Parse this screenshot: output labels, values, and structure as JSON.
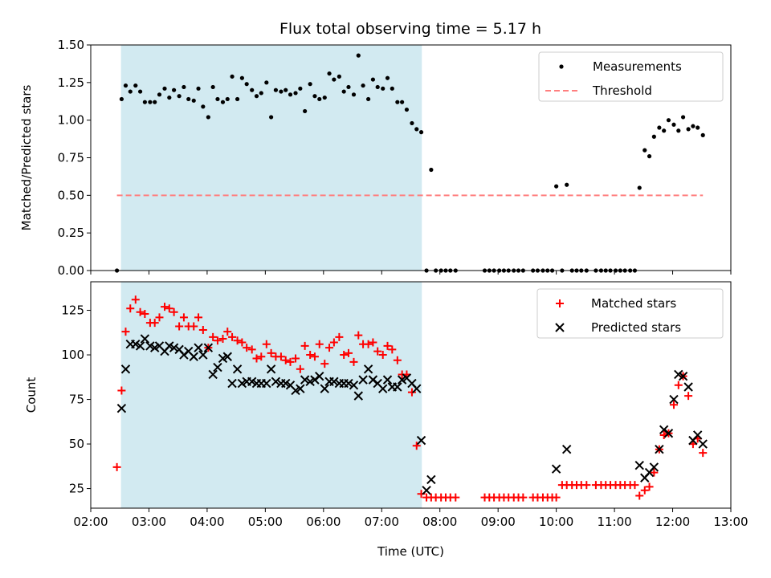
{
  "chart_data": [
    {
      "type": "scatter",
      "title": "Flux total observing time = 5.17 h",
      "ylabel": "Matched/Predicted stars",
      "xlabel": "",
      "xlim": [
        2.0,
        13.0
      ],
      "ylim": [
        0.0,
        1.5
      ],
      "yticks": [
        "0.00",
        "0.25",
        "0.50",
        "0.75",
        "1.00",
        "1.25",
        "1.50"
      ],
      "grid": false,
      "legend_position": "top-right",
      "highlight_span": [
        2.52,
        7.69
      ],
      "series": [
        {
          "name": "Measurements",
          "marker": "dot",
          "color": "#000000",
          "x": [
            2.45,
            2.53,
            2.6,
            2.68,
            2.77,
            2.85,
            2.93,
            3.02,
            3.1,
            3.18,
            3.27,
            3.35,
            3.43,
            3.52,
            3.6,
            3.68,
            3.77,
            3.85,
            3.93,
            4.02,
            4.1,
            4.18,
            4.27,
            4.35,
            4.43,
            4.52,
            4.6,
            4.68,
            4.77,
            4.85,
            4.93,
            5.02,
            5.1,
            5.18,
            5.27,
            5.35,
            5.43,
            5.52,
            5.6,
            5.68,
            5.77,
            5.85,
            5.93,
            6.02,
            6.1,
            6.18,
            6.27,
            6.35,
            6.43,
            6.52,
            6.6,
            6.68,
            6.77,
            6.85,
            6.93,
            7.02,
            7.1,
            7.18,
            7.27,
            7.35,
            7.43,
            7.52,
            7.6,
            7.68,
            7.77,
            7.85,
            7.93,
            8.02,
            8.1,
            8.18,
            8.27,
            8.77,
            8.85,
            8.93,
            9.02,
            9.1,
            9.18,
            9.27,
            9.35,
            9.43,
            9.6,
            9.68,
            9.77,
            9.85,
            9.93,
            10.0,
            10.1,
            10.18,
            10.27,
            10.35,
            10.43,
            10.52,
            10.68,
            10.77,
            10.85,
            10.93,
            11.02,
            11.1,
            11.18,
            11.27,
            11.35,
            11.43,
            11.52,
            11.6,
            11.68,
            11.77,
            11.85,
            11.93,
            12.02,
            12.1,
            12.18,
            12.27,
            12.35,
            12.43,
            12.52
          ],
          "y": [
            0.0,
            1.14,
            1.23,
            1.19,
            1.23,
            1.19,
            1.12,
            1.12,
            1.12,
            1.17,
            1.21,
            1.15,
            1.2,
            1.16,
            1.22,
            1.14,
            1.13,
            1.21,
            1.09,
            1.02,
            1.22,
            1.14,
            1.12,
            1.14,
            1.29,
            1.14,
            1.28,
            1.24,
            1.2,
            1.16,
            1.18,
            1.25,
            1.02,
            1.2,
            1.19,
            1.2,
            1.17,
            1.18,
            1.21,
            1.06,
            1.24,
            1.16,
            1.14,
            1.15,
            1.31,
            1.27,
            1.29,
            1.19,
            1.22,
            1.17,
            1.43,
            1.23,
            1.14,
            1.27,
            1.22,
            1.21,
            1.28,
            1.21,
            1.12,
            1.12,
            1.07,
            0.98,
            0.94,
            0.92,
            0.0,
            0.67,
            0.0,
            0.0,
            0.0,
            0.0,
            0.0,
            0.0,
            0.0,
            0.0,
            0.0,
            0.0,
            0.0,
            0.0,
            0.0,
            0.0,
            0.0,
            0.0,
            0.0,
            0.0,
            0.0,
            0.56,
            0.0,
            0.57,
            0.0,
            0.0,
            0.0,
            0.0,
            0.0,
            0.0,
            0.0,
            0.0,
            0.0,
            0.0,
            0.0,
            0.0,
            0.0,
            0.55,
            0.8,
            0.76,
            0.89,
            0.95,
            0.93,
            1.0,
            0.97,
            0.93,
            1.02,
            0.94,
            0.96,
            0.95,
            0.9
          ]
        },
        {
          "name": "Threshold",
          "marker": "dashed-line",
          "color": "#ff7f7f",
          "x": [
            2.45,
            12.52
          ],
          "y": [
            0.5,
            0.5
          ]
        }
      ]
    },
    {
      "type": "scatter",
      "title": "",
      "ylabel": "Count",
      "xlabel": "Time (UTC)",
      "xlim": [
        2.0,
        13.0
      ],
      "ylim": [
        14,
        141
      ],
      "yticks": [
        "25",
        "50",
        "75",
        "100",
        "125"
      ],
      "xticks": [
        "02:00",
        "03:00",
        "04:00",
        "05:00",
        "06:00",
        "07:00",
        "08:00",
        "09:00",
        "10:00",
        "11:00",
        "12:00",
        "13:00"
      ],
      "grid": false,
      "legend_position": "top-right",
      "highlight_span": [
        2.52,
        7.69
      ],
      "series": [
        {
          "name": "Matched stars",
          "marker": "plus",
          "color": "#ff0000",
          "x": [
            2.45,
            2.53,
            2.6,
            2.68,
            2.77,
            2.85,
            2.93,
            3.02,
            3.1,
            3.18,
            3.27,
            3.35,
            3.43,
            3.52,
            3.6,
            3.68,
            3.77,
            3.85,
            3.93,
            4.02,
            4.1,
            4.18,
            4.27,
            4.35,
            4.43,
            4.52,
            4.6,
            4.68,
            4.77,
            4.85,
            4.93,
            5.02,
            5.1,
            5.18,
            5.27,
            5.35,
            5.43,
            5.52,
            5.6,
            5.68,
            5.77,
            5.85,
            5.93,
            6.02,
            6.1,
            6.18,
            6.27,
            6.35,
            6.43,
            6.52,
            6.6,
            6.68,
            6.77,
            6.85,
            6.93,
            7.02,
            7.1,
            7.18,
            7.27,
            7.35,
            7.43,
            7.52,
            7.6,
            7.68,
            7.77,
            7.85,
            7.93,
            8.02,
            8.1,
            8.18,
            8.27,
            8.77,
            8.85,
            8.93,
            9.02,
            9.1,
            9.18,
            9.27,
            9.35,
            9.43,
            9.6,
            9.68,
            9.77,
            9.85,
            9.93,
            10.0,
            10.1,
            10.18,
            10.27,
            10.35,
            10.43,
            10.52,
            10.68,
            10.77,
            10.85,
            10.93,
            11.02,
            11.1,
            11.18,
            11.27,
            11.35,
            11.43,
            11.52,
            11.6,
            11.68,
            11.77,
            11.85,
            11.93,
            12.02,
            12.1,
            12.18,
            12.27,
            12.35,
            12.43,
            12.52
          ],
          "y": [
            37,
            80,
            113,
            126,
            131,
            124,
            123,
            118,
            118,
            121,
            127,
            126,
            124,
            116,
            121,
            116,
            116,
            121,
            114,
            104,
            110,
            108,
            109,
            113,
            110,
            108,
            107,
            104,
            103,
            98,
            99,
            106,
            101,
            99,
            99,
            97,
            96,
            98,
            92,
            105,
            100,
            99,
            106,
            95,
            104,
            107,
            110,
            100,
            101,
            96,
            111,
            106,
            106,
            107,
            102,
            100,
            105,
            103,
            97,
            89,
            89,
            79,
            49,
            22,
            20,
            20,
            20,
            20,
            20,
            20,
            20,
            20,
            20,
            20,
            20,
            20,
            20,
            20,
            20,
            20,
            20,
            20,
            20,
            20,
            20,
            20,
            27,
            27,
            27,
            27,
            27,
            27,
            27,
            27,
            27,
            27,
            27,
            27,
            27,
            27,
            27,
            21,
            24,
            26,
            34,
            47,
            55,
            56,
            72,
            83,
            88,
            77,
            50,
            53,
            45
          ]
        },
        {
          "name": "Predicted stars",
          "marker": "x",
          "color": "#000000",
          "x": [
            2.53,
            2.6,
            2.68,
            2.77,
            2.85,
            2.93,
            3.02,
            3.1,
            3.18,
            3.27,
            3.35,
            3.43,
            3.52,
            3.6,
            3.68,
            3.77,
            3.85,
            3.93,
            4.02,
            4.1,
            4.18,
            4.27,
            4.35,
            4.43,
            4.52,
            4.6,
            4.68,
            4.77,
            4.85,
            4.93,
            5.02,
            5.1,
            5.18,
            5.27,
            5.35,
            5.43,
            5.52,
            5.6,
            5.68,
            5.77,
            5.85,
            5.93,
            6.02,
            6.1,
            6.18,
            6.27,
            6.35,
            6.43,
            6.52,
            6.6,
            6.68,
            6.77,
            6.85,
            6.93,
            7.02,
            7.1,
            7.18,
            7.27,
            7.35,
            7.43,
            7.52,
            7.6,
            7.68,
            7.77,
            7.85,
            10.0,
            10.18,
            11.43,
            11.52,
            11.6,
            11.68,
            11.77,
            11.85,
            11.93,
            12.02,
            12.1,
            12.18,
            12.27,
            12.35,
            12.43,
            12.52
          ],
          "y": [
            70,
            92,
            106,
            106,
            105,
            109,
            105,
            104,
            105,
            102,
            105,
            104,
            103,
            100,
            102,
            99,
            104,
            100,
            104,
            89,
            93,
            98,
            99,
            84,
            92,
            84,
            85,
            85,
            84,
            84,
            84,
            92,
            85,
            84,
            84,
            83,
            80,
            81,
            86,
            85,
            86,
            88,
            81,
            85,
            85,
            84,
            84,
            84,
            83,
            77,
            86,
            92,
            86,
            84,
            81,
            86,
            82,
            82,
            86,
            87,
            84,
            81,
            52,
            24,
            30,
            36,
            47,
            38,
            31,
            34,
            37,
            47,
            58,
            56,
            75,
            89,
            88,
            82,
            52,
            55,
            50
          ]
        }
      ]
    }
  ]
}
